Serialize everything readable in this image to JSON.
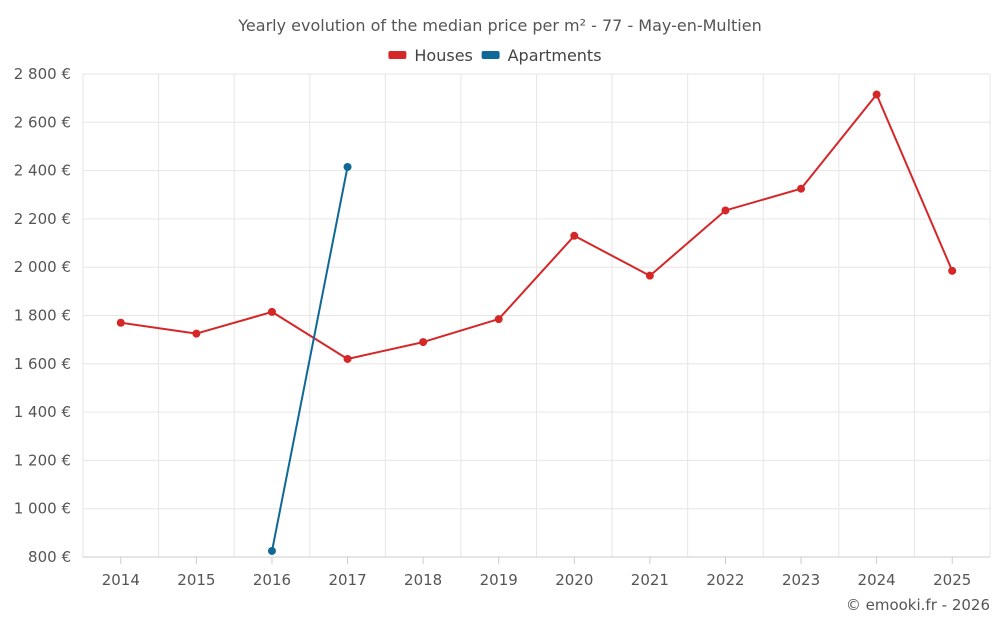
{
  "chart_data": {
    "type": "line",
    "title": "Yearly evolution of the median price per m² - 77 - May-en-Multien",
    "xlabel": "",
    "ylabel": "",
    "categories": [
      "2014",
      "2015",
      "2016",
      "2017",
      "2018",
      "2019",
      "2020",
      "2021",
      "2022",
      "2023",
      "2024",
      "2025"
    ],
    "ylim": [
      800,
      2800
    ],
    "ytick_values": [
      800,
      1000,
      1200,
      1400,
      1600,
      1800,
      2000,
      2200,
      2400,
      2600,
      2800
    ],
    "ytick_labels": [
      "800 €",
      "1 000 €",
      "1 200 €",
      "1 400 €",
      "1 600 €",
      "1 800 €",
      "2 000 €",
      "2 200 €",
      "2 400 €",
      "2 600 €",
      "2 800 €"
    ],
    "legend_position": "top-center",
    "grid": true,
    "series": [
      {
        "name": "Houses",
        "color": "#d62728",
        "values": [
          1770,
          1725,
          1815,
          1620,
          1690,
          1785,
          2130,
          1965,
          2235,
          2325,
          2715,
          1985
        ]
      },
      {
        "name": "Apartments",
        "color": "#0f6896",
        "values": [
          null,
          null,
          825,
          2415,
          null,
          null,
          null,
          null,
          null,
          null,
          null,
          null
        ]
      }
    ]
  },
  "credit": "© emooki.fr - 2026"
}
